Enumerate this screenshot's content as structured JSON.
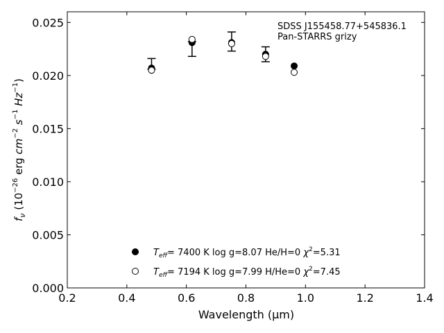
{
  "chart_data": {
    "type": "scatter",
    "xlabel": "Wavelength (μm)",
    "ylabel": "f_ν (10^-26 erg cm^-2 s^-1 Hz^-1)",
    "xlim": [
      0.2,
      1.4
    ],
    "ylim": [
      0.0,
      0.026
    ],
    "x_ticks": [
      0.2,
      0.4,
      0.6,
      0.8,
      1.0,
      1.2,
      1.4
    ],
    "x_tick_labels": [
      "0.2",
      "0.4",
      "0.6",
      "0.8",
      "1.0",
      "1.2",
      "1.4"
    ],
    "y_ticks": [
      0.0,
      0.005,
      0.01,
      0.015,
      0.02,
      0.025
    ],
    "y_tick_labels": [
      "0.000",
      "0.005",
      "0.010",
      "0.015",
      "0.020",
      "0.025"
    ],
    "grid": false,
    "annotation": {
      "line1": "SDSS J155458.77+545836.1",
      "line2": "Pan-STARRS grizy"
    },
    "observed": {
      "x": [
        0.483,
        0.619,
        0.752,
        0.866
      ],
      "y": [
        0.0211,
        0.0225,
        0.0232,
        0.022
      ],
      "err": [
        0.0005,
        0.0007,
        0.0009,
        0.0007
      ]
    },
    "series": [
      {
        "marker": "filled-circle",
        "x": [
          0.483,
          0.619,
          0.752,
          0.866,
          0.962
        ],
        "y": [
          0.0207,
          0.0231,
          0.0231,
          0.022,
          0.0209
        ]
      },
      {
        "marker": "open-circle",
        "x": [
          0.483,
          0.619,
          0.752,
          0.866,
          0.962
        ],
        "y": [
          0.0205,
          0.0234,
          0.023,
          0.0218,
          0.0203
        ]
      }
    ],
    "legend": {
      "placement": "lower-center",
      "entries": [
        {
          "marker": "filled-circle",
          "teff": "7400 K",
          "logg": "log g=8.07",
          "comp": "He/H=0",
          "chi2": "=5.31"
        },
        {
          "marker": "open-circle",
          "teff": "7194 K",
          "logg": "log g=7.99",
          "comp": "H/He=0",
          "chi2": "=7.45"
        }
      ]
    }
  }
}
